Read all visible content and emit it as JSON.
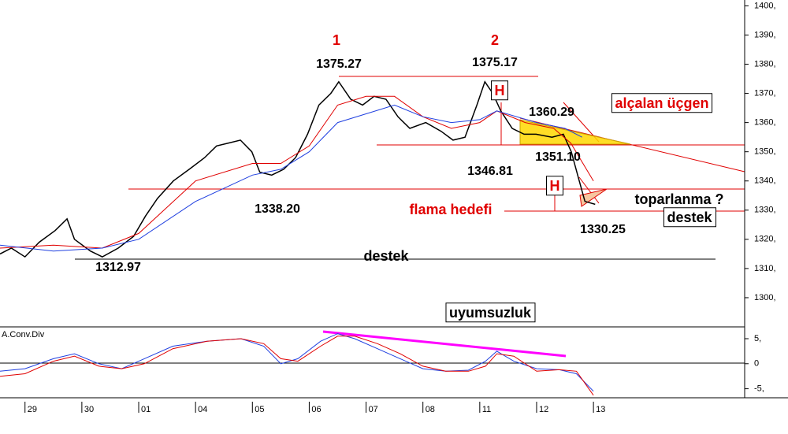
{
  "chart_data": [
    {
      "type": "line",
      "xlim": [
        -0.44,
        12.66
      ],
      "ylim": [
        1290,
        1402
      ],
      "yticks": [
        {
          "value": 1300,
          "label": "1300,"
        },
        {
          "value": 1310,
          "label": "1310,"
        },
        {
          "value": 1320,
          "label": "1320,"
        },
        {
          "value": 1330,
          "label": "1330,"
        },
        {
          "value": 1340,
          "label": "1340,"
        },
        {
          "value": 1350,
          "label": "1350,"
        },
        {
          "value": 1360,
          "label": "1360,"
        },
        {
          "value": 1370,
          "label": "1370,"
        },
        {
          "value": 1380,
          "label": "1380,"
        },
        {
          "value": 1390,
          "label": "1390,"
        },
        {
          "value": 1400,
          "label": "1400,"
        }
      ],
      "series": [
        {
          "color": "#000000",
          "x": [
            -0.44,
            -0.24,
            0,
            0.25,
            0.53,
            0.74,
            0.87,
            1.15,
            1.36,
            1.64,
            1.91,
            2.12,
            2.33,
            2.61,
            2.89,
            3.16,
            3.37,
            3.58,
            3.79,
            3.99,
            4.13,
            4.34,
            4.55,
            4.76,
            4.97,
            5.17,
            5.38,
            5.52,
            5.73,
            5.94,
            6.14,
            6.35,
            6.56,
            6.77,
            7.05,
            7.32,
            7.53,
            7.74,
            7.95,
            8.09,
            8.23,
            8.37,
            8.57,
            8.78,
            8.99,
            9.27,
            9.47,
            9.61,
            9.75,
            9.85,
            10.03
          ],
          "values": [
            1315,
            1317,
            1314,
            1319,
            1323,
            1327,
            1320,
            1316,
            1314,
            1317,
            1321,
            1328,
            1334,
            1340,
            1344,
            1348,
            1352,
            1353,
            1354,
            1350,
            1343,
            1342,
            1344,
            1348,
            1356,
            1366,
            1370,
            1374,
            1368,
            1366,
            1369,
            1368,
            1362,
            1358,
            1360,
            1357,
            1354,
            1355,
            1366,
            1374,
            1370,
            1364,
            1358,
            1356,
            1356,
            1355,
            1356,
            1350,
            1340,
            1333,
            1332
          ]
        },
        {
          "color": "#e00000",
          "x": [
            -0.44,
            0.5,
            1.36,
            2,
            3,
            4,
            4.5,
            5,
            5.5,
            6,
            6.5,
            7,
            7.5,
            8,
            8.3,
            8.8,
            9.3,
            9.6,
            10
          ],
          "values": [
            1317,
            1318,
            1317,
            1322,
            1340,
            1346,
            1346,
            1352,
            1366,
            1369,
            1369,
            1362,
            1358,
            1360,
            1364,
            1360,
            1358,
            1353,
            1340
          ]
        },
        {
          "color": "#2040e0",
          "x": [
            -0.44,
            0.5,
            1.36,
            2,
            3,
            4,
            4.5,
            5,
            5.5,
            6,
            6.5,
            7,
            7.5,
            8,
            8.3,
            9,
            9.5,
            9.8
          ],
          "values": [
            1318,
            1316,
            1317,
            1320,
            1333,
            1342,
            1344,
            1350,
            1360,
            1363,
            1366,
            1362,
            1360,
            1361,
            1364,
            1360,
            1358,
            1355
          ]
        }
      ],
      "annotations": [
        "1",
        "2",
        "1375.27",
        "1375.17",
        "1360.29",
        "1351.10",
        "1346.81",
        "1338.20",
        "1312.97",
        "1330.25",
        "alçalan üçgen",
        "toparlanma ?",
        "destek",
        "destek",
        "flama hedefi",
        "uyumsuzluk",
        "H",
        "H"
      ]
    },
    {
      "type": "line",
      "title": "A.Conv.Div",
      "xlim": [
        -0.44,
        12.66
      ],
      "ylim": [
        -6.8,
        7.2
      ],
      "yticks": [
        {
          "value": 5,
          "label": "5,"
        },
        0,
        {
          "value": -5,
          "label": "-5,"
        }
      ],
      "xticks": [
        {
          "value": 0,
          "label": "29"
        },
        {
          "value": 1,
          "label": "30"
        },
        {
          "value": 2,
          "label": "01"
        },
        {
          "value": 3,
          "label": "04"
        },
        {
          "value": 4,
          "label": "05"
        },
        {
          "value": 5,
          "label": "06"
        },
        {
          "value": 6,
          "label": "07"
        },
        {
          "value": 7,
          "label": "08"
        },
        {
          "value": 8,
          "label": "11"
        },
        {
          "value": 9,
          "label": "12"
        },
        {
          "value": 10,
          "label": "13"
        }
      ],
      "series": [
        {
          "color": "#2040e0",
          "x": [
            -0.44,
            0,
            0.5,
            0.87,
            1.3,
            1.7,
            2.1,
            2.6,
            3.2,
            3.8,
            4.2,
            4.5,
            4.8,
            5.2,
            5.5,
            5.8,
            6.2,
            6.6,
            7.0,
            7.4,
            7.8,
            8.1,
            8.3,
            8.6,
            9.0,
            9.4,
            9.7,
            10.0
          ],
          "values": [
            -1.5,
            -1,
            1,
            2,
            0,
            -1,
            1,
            3.5,
            4.5,
            5,
            3.5,
            0,
            1,
            4.5,
            6,
            5,
            3,
            1,
            -1,
            -1.5,
            -1.3,
            0.5,
            2.5,
            0.5,
            -1,
            -1.2,
            -2,
            -5.5
          ]
        },
        {
          "color": "#e00000",
          "x": [
            -0.44,
            0,
            0.5,
            0.87,
            1.3,
            1.7,
            2.1,
            2.6,
            3.2,
            3.8,
            4.2,
            4.5,
            4.8,
            5.2,
            5.5,
            5.8,
            6.2,
            6.6,
            7.0,
            7.4,
            7.8,
            8.1,
            8.3,
            8.6,
            9.0,
            9.4,
            9.7,
            10.0
          ],
          "values": [
            -2.5,
            -2,
            0.5,
            1.5,
            -0.5,
            -1,
            0,
            3,
            4.5,
            5,
            4,
            1,
            0.5,
            3.5,
            5.5,
            5.5,
            4,
            2,
            -0.5,
            -1.5,
            -1.5,
            -0.5,
            2,
            1.5,
            -1.5,
            -1.2,
            -1.5,
            -6.3
          ]
        }
      ]
    }
  ]
}
